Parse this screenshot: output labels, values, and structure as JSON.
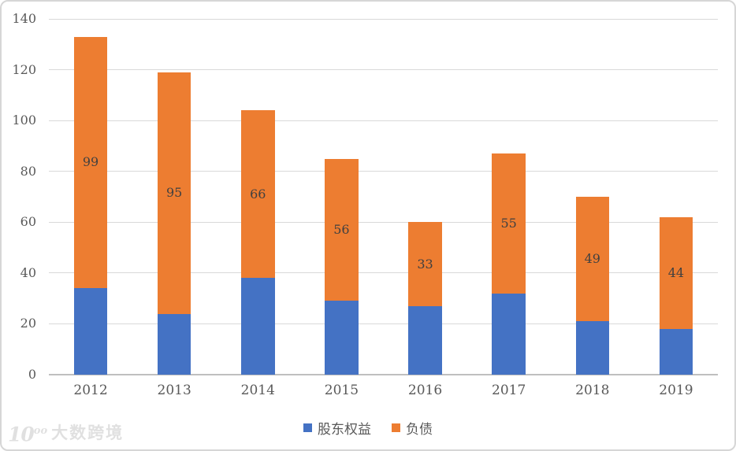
{
  "chart_data": {
    "type": "bar",
    "stacked": true,
    "title": "",
    "categories": [
      "2012",
      "2013",
      "2014",
      "2015",
      "2016",
      "2017",
      "2018",
      "2019"
    ],
    "series": [
      {
        "id": "equity",
        "name": "股东权益",
        "color": "#4472C4",
        "values": [
          34,
          24,
          38,
          29,
          27,
          32,
          21,
          18
        ],
        "show_value_labels": false
      },
      {
        "id": "debt",
        "name": "负债",
        "color": "#ED7D31",
        "values": [
          99,
          95,
          66,
          56,
          33,
          55,
          49,
          44
        ],
        "show_value_labels": true
      }
    ],
    "totals": [
      133,
      119,
      104,
      85,
      60,
      87,
      70,
      62
    ],
    "ylim": [
      0,
      140
    ],
    "ytick_interval": 20,
    "yticks": [
      0,
      20,
      40,
      60,
      80,
      100,
      120,
      140
    ],
    "xlabel": "",
    "ylabel": "",
    "grid": "horizontal",
    "legend_position": "bottom"
  },
  "colors": {
    "series_equity": "#4472C4",
    "series_debt": "#ED7D31",
    "gridline": "#d9d9d9",
    "axis_line": "#bfbfbf",
    "tick_text": "#595959",
    "value_label_text": "#404040",
    "card_border": "#d6d6d6"
  },
  "watermark": {
    "logo_text": "10",
    "logo_sup": "oo",
    "brand_text": "大数跨境"
  }
}
